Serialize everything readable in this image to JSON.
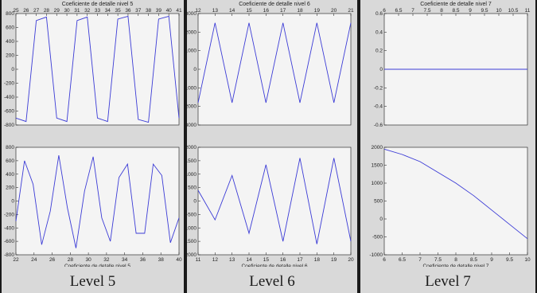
{
  "colors": {
    "line": "#3b3bd6",
    "axes_bg": "#f4f4f4",
    "frame": "#d9d9d9"
  },
  "levels": [
    {
      "label": "Level 5"
    },
    {
      "label": "Level 6"
    },
    {
      "label": "Level 7"
    }
  ],
  "chart_data": [
    {
      "type": "line",
      "title": "Coeficiente de detalle nivel 5",
      "xlabel": "",
      "ylabel": "",
      "xticks_top": [
        "25",
        "26",
        "27",
        "28",
        "29",
        "30",
        "31",
        "32",
        "33",
        "34",
        "35",
        "36",
        "37",
        "38",
        "39",
        "40",
        "41"
      ],
      "xlim": [
        25,
        41
      ],
      "ylim": [
        -800,
        800
      ],
      "yticks": [
        "800",
        "600",
        "400",
        "200",
        "0",
        "-200",
        "-400",
        "-600",
        "-800"
      ],
      "x": [
        25,
        26,
        27,
        28,
        29,
        30,
        31,
        32,
        33,
        34,
        35,
        36,
        37,
        38,
        39,
        40,
        41
      ],
      "y": [
        -700,
        -750,
        700,
        750,
        -700,
        -750,
        700,
        750,
        -700,
        -750,
        720,
        760,
        -720,
        -760,
        720,
        760,
        -700
      ]
    },
    {
      "type": "line",
      "title": "",
      "xlabel": "Coeficiente de detalle nivel 5",
      "xticks": [
        "22",
        "24",
        "26",
        "28",
        "30",
        "32",
        "34",
        "36",
        "38",
        "40"
      ],
      "xlim": [
        21,
        40
      ],
      "ylim": [
        -800,
        800
      ],
      "yticks": [
        "800",
        "600",
        "400",
        "200",
        "0",
        "-200",
        "-400",
        "-600",
        "-800"
      ],
      "x": [
        21,
        22,
        23,
        24,
        25,
        26,
        27,
        28,
        29,
        30,
        31,
        32,
        33,
        34,
        35,
        36,
        37,
        38,
        39,
        40
      ],
      "y": [
        -300,
        600,
        250,
        -650,
        -150,
        680,
        -100,
        -700,
        150,
        660,
        -250,
        -600,
        350,
        550,
        -480,
        -480,
        550,
        380,
        -620,
        -250
      ]
    },
    {
      "type": "line",
      "title": "Coeficiente de detalle nivel 6",
      "xlabel": "",
      "xticks_top": [
        "12",
        "13",
        "14",
        "15",
        "16",
        "17",
        "18",
        "19",
        "20",
        "21"
      ],
      "xlim": [
        12,
        21
      ],
      "ylim": [
        -3000,
        3000
      ],
      "yticks": [
        "3000",
        "2000",
        "1000",
        "0",
        "-1000",
        "-2000",
        "-3000"
      ],
      "x": [
        12,
        13,
        14,
        15,
        16,
        17,
        18,
        19,
        20,
        21
      ],
      "y": [
        -1800,
        2500,
        -1800,
        2500,
        -1800,
        2500,
        -1800,
        2500,
        -1800,
        2500
      ]
    },
    {
      "type": "line",
      "title": "",
      "xlabel": "Coeficiente de detalle nivel 6",
      "xticks": [
        "11",
        "12",
        "13",
        "14",
        "15",
        "16",
        "17",
        "18",
        "19",
        "20"
      ],
      "xlim": [
        11,
        20
      ],
      "ylim": [
        -2000,
        2000
      ],
      "yticks": [
        "2000",
        "1500",
        "1000",
        "500",
        "0",
        "-500",
        "-1000",
        "-1500",
        "-2000"
      ],
      "x": [
        11,
        12,
        13,
        14,
        15,
        16,
        17,
        18,
        19,
        20
      ],
      "y": [
        400,
        -700,
        950,
        -1200,
        1350,
        -1500,
        1600,
        -1600,
        1600,
        -1500
      ]
    },
    {
      "type": "line",
      "title": "Coeficiente de detalle nivel 7",
      "xlabel": "",
      "xticks_top": [
        "6",
        "6.5",
        "7",
        "7.5",
        "8",
        "8.5",
        "9",
        "9.5",
        "10",
        "10.5",
        "11"
      ],
      "xlim": [
        6,
        11
      ],
      "ylim": [
        -0.6,
        0.6
      ],
      "yticks": [
        "0.6",
        "0.4",
        "0.2",
        "0",
        "-0.2",
        "-0.4",
        "-0.6"
      ],
      "x": [
        6,
        11
      ],
      "y": [
        0,
        0
      ]
    },
    {
      "type": "line",
      "title": "",
      "xlabel": "Coeficiente de detalle nivel 7",
      "xticks": [
        "6",
        "6.5",
        "7",
        "7.5",
        "8",
        "8.5",
        "9",
        "9.5",
        "10"
      ],
      "xlim": [
        6,
        10
      ],
      "ylim": [
        -1000,
        2000
      ],
      "yticks": [
        "2000",
        "1500",
        "1000",
        "500",
        "0",
        "-500",
        "-1000"
      ],
      "x": [
        6,
        6.5,
        7,
        7.5,
        8,
        8.5,
        9,
        9.5,
        10
      ],
      "y": [
        1950,
        1800,
        1600,
        1300,
        1000,
        650,
        250,
        -150,
        -550
      ]
    }
  ]
}
